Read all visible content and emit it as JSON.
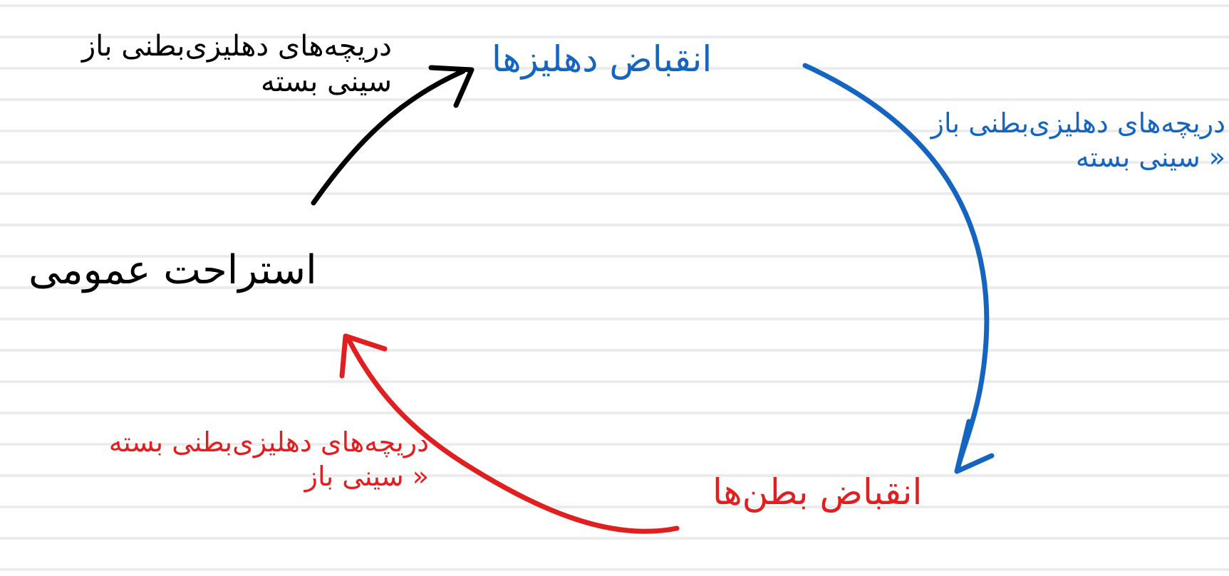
{
  "colors": {
    "rest": "#000000",
    "atrial": "#1565c0",
    "ventricular": "#e02020",
    "ruled_line": "#ececec"
  },
  "states": {
    "rest": "استراحت عمومی",
    "atrial_contraction": "انقباض دهلیزها",
    "ventricular_contraction": "انقباض بطن‌ها"
  },
  "transitions": {
    "rest_to_atrial": {
      "line1": "دریچه‌های دهلیزی‌بطنی باز",
      "line2": "سینی بسته"
    },
    "atrial_to_ventricular": {
      "line1": "دریچه‌های دهلیزی‌بطنی باز",
      "line2": "« سینی بسته"
    },
    "ventricular_to_rest": {
      "line1": "دریچه‌های دهلیزی‌بطنی بسته",
      "line2": "« سینی باز"
    }
  }
}
